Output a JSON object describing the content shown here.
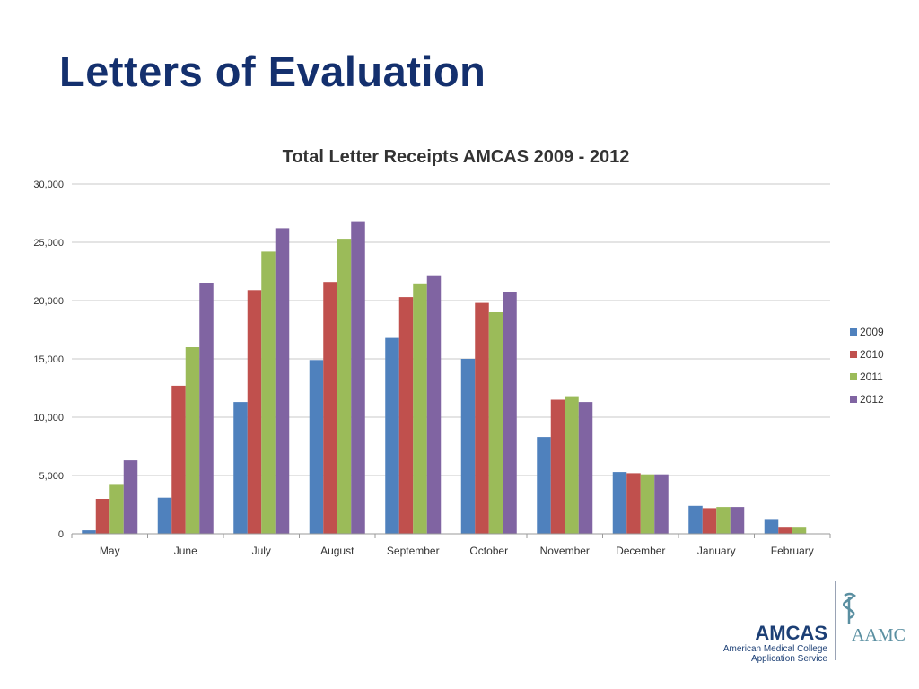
{
  "slide": {
    "title": "Letters of Evaluation"
  },
  "colors": {
    "title": "#14306e",
    "text": "#333333",
    "grid": "#c8c8c8",
    "axis": "#9a9a9a",
    "series": [
      "#4f81bd",
      "#c0504d",
      "#9bbb59",
      "#8064a2"
    ],
    "logo_blue": "#1c3f75",
    "logo_teal": "#5a8fa1"
  },
  "chart_data": {
    "type": "bar",
    "title": "Total Letter Receipts AMCAS 2009 - 2012",
    "xlabel": "",
    "ylabel": "",
    "ylim": [
      0,
      30000
    ],
    "yticks": [
      0,
      5000,
      10000,
      15000,
      20000,
      25000,
      30000
    ],
    "ytick_labels": [
      "0",
      "5,000",
      "10,000",
      "15,000",
      "20,000",
      "25,000",
      "30,000"
    ],
    "grid": true,
    "legend_position": "right",
    "categories": [
      "May",
      "June",
      "July",
      "August",
      "September",
      "October",
      "November",
      "December",
      "January",
      "February"
    ],
    "series": [
      {
        "name": "2009",
        "values": [
          300,
          3100,
          11300,
          14900,
          16800,
          15000,
          8300,
          5300,
          2400,
          1200
        ]
      },
      {
        "name": "2010",
        "values": [
          3000,
          12700,
          20900,
          21600,
          20300,
          19800,
          11500,
          5200,
          2200,
          600
        ]
      },
      {
        "name": "2011",
        "values": [
          4200,
          16000,
          24200,
          25300,
          21400,
          19000,
          11800,
          5100,
          2300,
          600
        ]
      },
      {
        "name": "2012",
        "values": [
          6300,
          21500,
          26200,
          26800,
          22100,
          20700,
          11300,
          5100,
          2300,
          null
        ]
      }
    ]
  },
  "footer": {
    "amcas_name": "AMCAS",
    "amcas_line1": "American Medical College",
    "amcas_line2": "Application Service",
    "aamc_name": "AAMC",
    "emblem_icon": "caduceus-icon"
  }
}
